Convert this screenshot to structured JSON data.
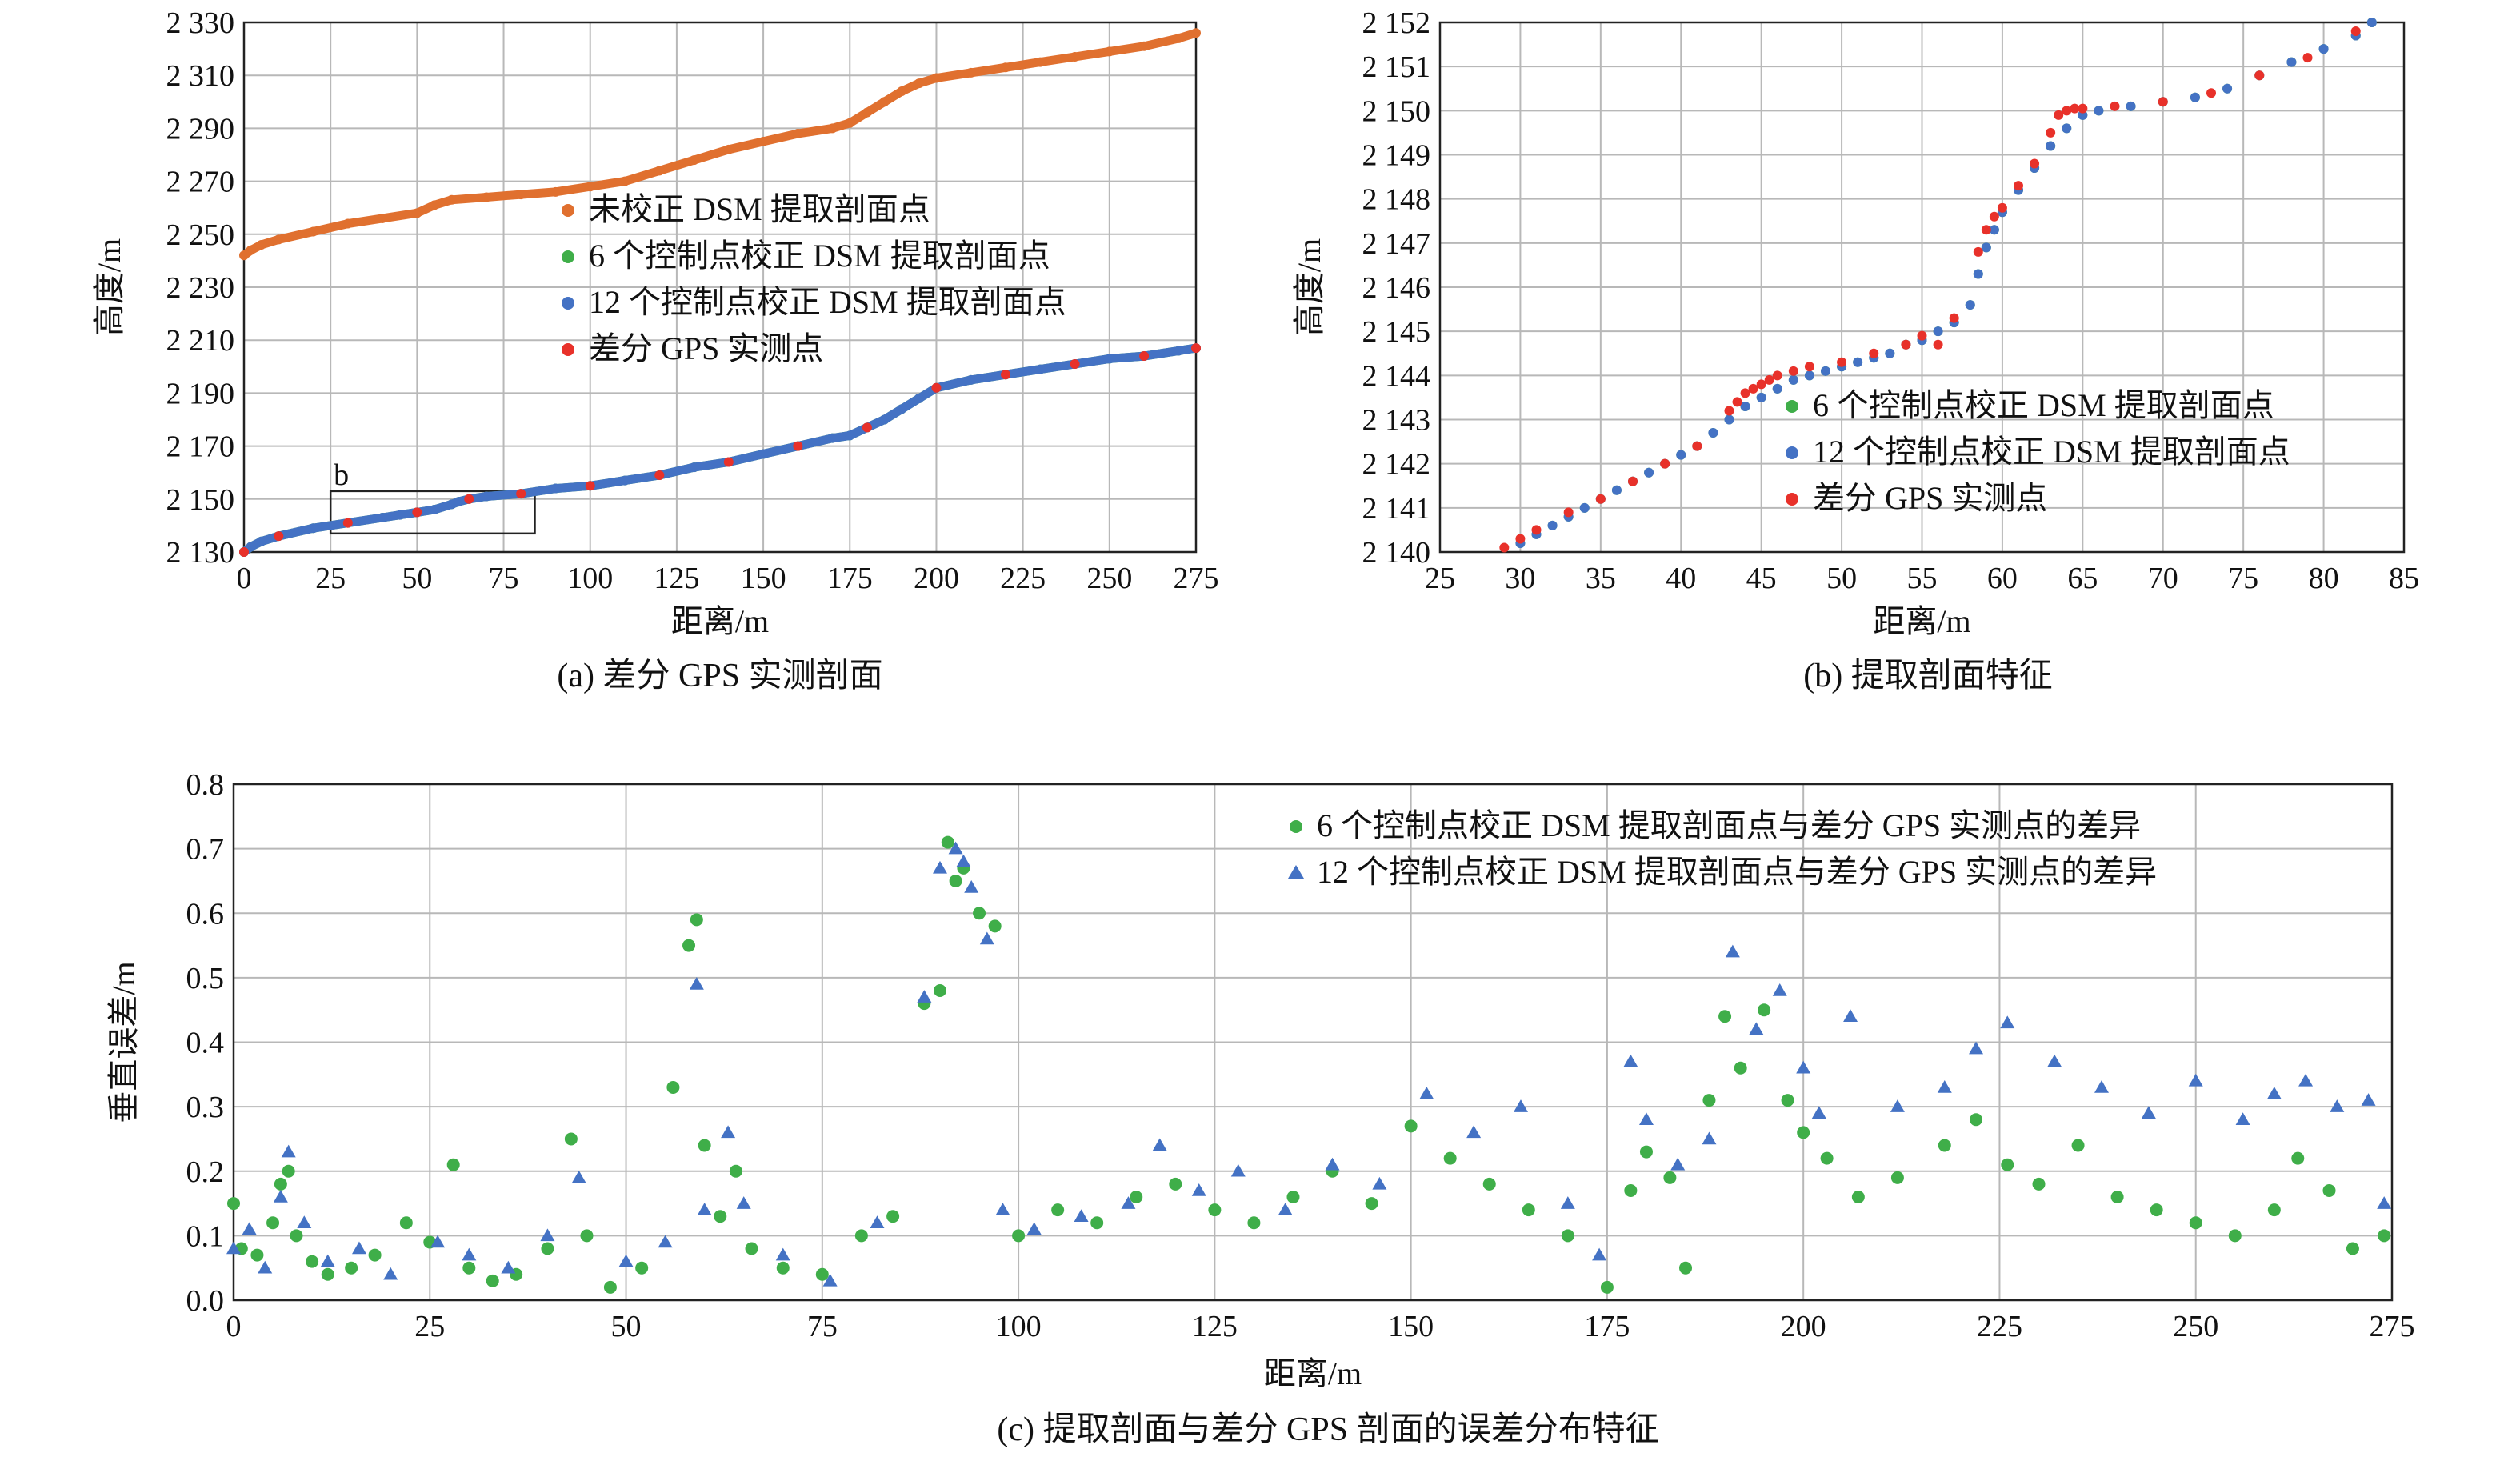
{
  "chart_data": [
    {
      "id": "a",
      "type": "scatter",
      "caption": "(a) 差分 GPS 实测剖面",
      "xlabel": "距离/m",
      "ylabel": "高度/m",
      "xlim": [
        0,
        275
      ],
      "ylim": [
        2130,
        2330
      ],
      "xticks": [
        0,
        25,
        50,
        75,
        100,
        125,
        150,
        175,
        200,
        225,
        250,
        275
      ],
      "yticks": [
        2130,
        2150,
        2170,
        2190,
        2210,
        2230,
        2250,
        2270,
        2290,
        2310,
        2330
      ],
      "ytick_labels": [
        "2 130",
        "2 150",
        "2 170",
        "2 190",
        "2 210",
        "2 230",
        "2 250",
        "2 270",
        "2 290",
        "2 310",
        "2 330"
      ],
      "grid": true,
      "legend_position": "center-right",
      "annotation": {
        "label": "b",
        "x_range": [
          25,
          84
        ],
        "y_range": [
          2137,
          2153
        ]
      },
      "series": [
        {
          "name": "未校正 DSM 提取剖面点",
          "color": "#E0702F",
          "x": [
            0,
            2,
            5,
            10,
            20,
            30,
            40,
            50,
            55,
            60,
            70,
            80,
            90,
            100,
            110,
            120,
            130,
            140,
            150,
            160,
            170,
            175,
            180,
            185,
            190,
            195,
            200,
            210,
            220,
            230,
            240,
            250,
            260,
            270,
            275
          ],
          "y": [
            2242,
            2244,
            2246,
            2248,
            2251,
            2254,
            2256,
            2258,
            2261,
            2263,
            2264,
            2265,
            2266,
            2268,
            2270,
            2274,
            2278,
            2282,
            2285,
            2288,
            2290,
            2292,
            2296,
            2300,
            2304,
            2307,
            2309,
            2311,
            2313,
            2315,
            2317,
            2319,
            2321,
            2324,
            2326
          ]
        },
        {
          "name": "6 个控制点校正 DSM 提取剖面点",
          "color": "#3FAE49",
          "x": [
            0,
            2,
            5,
            10,
            20,
            30,
            40,
            45,
            50,
            55,
            60,
            62,
            65,
            70,
            80,
            90,
            100,
            110,
            120,
            130,
            140,
            150,
            160,
            170,
            175,
            180,
            185,
            190,
            195,
            200,
            210,
            220,
            230,
            240,
            250,
            260,
            270,
            275
          ],
          "y": [
            2130,
            2132,
            2134,
            2136,
            2139,
            2141,
            2143,
            2144,
            2145,
            2146,
            2148,
            2149,
            2150,
            2151,
            2152,
            2154,
            2155,
            2157,
            2159,
            2162,
            2164,
            2167,
            2170,
            2173,
            2174,
            2177,
            2180,
            2184,
            2188,
            2192,
            2195,
            2197,
            2199,
            2201,
            2203,
            2204,
            2206,
            2207
          ]
        },
        {
          "name": "12 个控制点校正 DSM 提取剖面点",
          "color": "#4472C4",
          "x": [
            0,
            2,
            5,
            10,
            20,
            30,
            40,
            45,
            50,
            55,
            60,
            62,
            65,
            70,
            80,
            90,
            100,
            110,
            120,
            130,
            140,
            150,
            160,
            170,
            175,
            180,
            185,
            190,
            195,
            200,
            210,
            220,
            230,
            240,
            250,
            260,
            270,
            275
          ],
          "y": [
            2130,
            2132,
            2134,
            2136,
            2139,
            2141,
            2143,
            2144,
            2145,
            2146,
            2148,
            2149,
            2150,
            2151,
            2152,
            2154,
            2155,
            2157,
            2159,
            2162,
            2164,
            2167,
            2170,
            2173,
            2174,
            2177,
            2180,
            2184,
            2188,
            2192,
            2195,
            2197,
            2199,
            2201,
            2203,
            2204,
            2206,
            2207
          ]
        },
        {
          "name": "差分 GPS 实测点",
          "color": "#E8312A",
          "x": [
            0,
            10,
            30,
            50,
            65,
            80,
            100,
            120,
            140,
            160,
            180,
            200,
            220,
            240,
            260,
            275
          ],
          "y": [
            2130,
            2136,
            2141,
            2145,
            2150,
            2152,
            2155,
            2159,
            2164,
            2170,
            2177,
            2192,
            2197,
            2201,
            2204,
            2207
          ]
        }
      ]
    },
    {
      "id": "b",
      "type": "scatter",
      "caption": "(b) 提取剖面特征",
      "xlabel": "距离/m",
      "ylabel": "高度/m",
      "xlim": [
        25,
        85
      ],
      "ylim": [
        2140,
        2152
      ],
      "xticks": [
        25,
        30,
        35,
        40,
        45,
        50,
        55,
        60,
        65,
        70,
        75,
        80,
        85
      ],
      "yticks": [
        2140,
        2141,
        2142,
        2143,
        2144,
        2145,
        2146,
        2147,
        2148,
        2149,
        2150,
        2151,
        2152
      ],
      "ytick_labels": [
        "2 140",
        "2 141",
        "2 142",
        "2 143",
        "2 144",
        "2 145",
        "2 146",
        "2 147",
        "2 148",
        "2 149",
        "2 150",
        "2 151",
        "2 152"
      ],
      "grid": true,
      "legend_position": "lower-right",
      "series": [
        {
          "name": "6 个控制点校正 DSM 提取剖面点",
          "color": "#3FAE49",
          "x": [
            30,
            31,
            32,
            33,
            34,
            35,
            36,
            37,
            38,
            39,
            40,
            41,
            42,
            43,
            44,
            45,
            46,
            47,
            48,
            49,
            50,
            51,
            52,
            53,
            54,
            55,
            56,
            57,
            58,
            58.5,
            59,
            59.5,
            60,
            61,
            62,
            63,
            64,
            65,
            66,
            68,
            70,
            72,
            74,
            76,
            78,
            80,
            82,
            83
          ],
          "y": [
            2140.2,
            2140.4,
            2140.6,
            2140.8,
            2141.0,
            2141.2,
            2141.4,
            2141.6,
            2141.8,
            2142.0,
            2142.2,
            2142.4,
            2142.7,
            2143.0,
            2143.3,
            2143.5,
            2143.7,
            2143.9,
            2144.0,
            2144.1,
            2144.2,
            2144.3,
            2144.4,
            2144.5,
            2144.7,
            2144.8,
            2145.0,
            2145.2,
            2145.6,
            2146.3,
            2146.9,
            2147.3,
            2147.7,
            2148.2,
            2148.7,
            2149.2,
            2149.6,
            2149.9,
            2150.0,
            2150.1,
            2150.2,
            2150.3,
            2150.5,
            2150.8,
            2151.1,
            2151.4,
            2151.7,
            2152.0
          ]
        },
        {
          "name": "12 个控制点校正 DSM 提取剖面点",
          "color": "#4472C4",
          "x": [
            30,
            31,
            32,
            33,
            34,
            35,
            36,
            37,
            38,
            39,
            40,
            41,
            42,
            43,
            44,
            45,
            46,
            47,
            48,
            49,
            50,
            51,
            52,
            53,
            54,
            55,
            56,
            57,
            58,
            58.5,
            59,
            59.5,
            60,
            61,
            62,
            63,
            64,
            65,
            66,
            68,
            70,
            72,
            74,
            76,
            78,
            80,
            82,
            83
          ],
          "y": [
            2140.2,
            2140.4,
            2140.6,
            2140.8,
            2141.0,
            2141.2,
            2141.4,
            2141.6,
            2141.8,
            2142.0,
            2142.2,
            2142.4,
            2142.7,
            2143.0,
            2143.3,
            2143.5,
            2143.7,
            2143.9,
            2144.0,
            2144.1,
            2144.2,
            2144.3,
            2144.4,
            2144.5,
            2144.7,
            2144.8,
            2145.0,
            2145.2,
            2145.6,
            2146.3,
            2146.9,
            2147.3,
            2147.7,
            2148.2,
            2148.7,
            2149.2,
            2149.6,
            2149.9,
            2150.0,
            2150.1,
            2150.2,
            2150.3,
            2150.5,
            2150.8,
            2151.1,
            2151.4,
            2151.7,
            2152.0
          ]
        },
        {
          "name": "差分 GPS 实测点",
          "color": "#E8312A",
          "x": [
            29,
            30,
            31,
            33,
            35,
            37,
            39,
            41,
            43,
            43.5,
            44,
            44.5,
            45,
            45.5,
            46,
            47,
            48,
            50,
            52,
            54,
            55,
            56,
            57,
            58.5,
            59,
            59.5,
            60,
            61,
            62,
            63,
            63.5,
            64,
            64.5,
            65,
            67,
            70,
            73,
            76,
            79,
            82
          ],
          "y": [
            2140.1,
            2140.3,
            2140.5,
            2140.9,
            2141.2,
            2141.6,
            2142.0,
            2142.4,
            2143.2,
            2143.4,
            2143.6,
            2143.7,
            2143.8,
            2143.9,
            2144.0,
            2144.1,
            2144.2,
            2144.3,
            2144.5,
            2144.7,
            2144.9,
            2144.7,
            2145.3,
            2146.8,
            2147.3,
            2147.6,
            2147.8,
            2148.3,
            2148.8,
            2149.5,
            2149.9,
            2150.0,
            2150.05,
            2150.05,
            2150.1,
            2150.2,
            2150.4,
            2150.8,
            2151.2,
            2151.8
          ]
        }
      ]
    },
    {
      "id": "c",
      "type": "scatter",
      "caption": "(c) 提取剖面与差分 GPS 剖面的误差分布特征",
      "xlabel": "距离/m",
      "ylabel": "垂直误差/m",
      "xlim": [
        0,
        275
      ],
      "ylim": [
        0,
        0.8
      ],
      "xticks": [
        0,
        25,
        50,
        75,
        100,
        125,
        150,
        175,
        200,
        225,
        250,
        275
      ],
      "yticks": [
        0,
        0.1,
        0.2,
        0.3,
        0.4,
        0.5,
        0.6,
        0.7,
        0.8
      ],
      "ytick_labels": [
        "0.0",
        "0.1",
        "0.2",
        "0.3",
        "0.4",
        "0.5",
        "0.6",
        "0.7",
        "0.8"
      ],
      "grid": true,
      "legend_position": "top-right",
      "series": [
        {
          "name": "6 个控制点校正 DSM 提取剖面点与差分 GPS 实测点的差异",
          "color": "#3FAE49",
          "marker": "circle",
          "x": [
            0,
            1,
            3,
            5,
            6,
            7,
            8,
            10,
            12,
            15,
            18,
            22,
            25,
            28,
            30,
            33,
            36,
            40,
            43,
            45,
            48,
            52,
            56,
            58,
            59,
            60,
            62,
            64,
            66,
            70,
            75,
            80,
            84,
            88,
            90,
            91,
            92,
            93,
            95,
            97,
            100,
            105,
            110,
            115,
            120,
            125,
            130,
            135,
            140,
            145,
            150,
            155,
            160,
            165,
            170,
            175,
            178,
            180,
            183,
            185,
            188,
            190,
            192,
            195,
            198,
            200,
            203,
            207,
            212,
            218,
            222,
            226,
            230,
            235,
            240,
            245,
            250,
            255,
            260,
            263,
            267,
            270,
            274
          ],
          "y": [
            0.15,
            0.08,
            0.07,
            0.12,
            0.18,
            0.2,
            0.1,
            0.06,
            0.04,
            0.05,
            0.07,
            0.12,
            0.09,
            0.21,
            0.05,
            0.03,
            0.04,
            0.08,
            0.25,
            0.1,
            0.02,
            0.05,
            0.33,
            0.55,
            0.59,
            0.24,
            0.13,
            0.2,
            0.08,
            0.05,
            0.04,
            0.1,
            0.13,
            0.46,
            0.48,
            0.71,
            0.65,
            0.67,
            0.6,
            0.58,
            0.1,
            0.14,
            0.12,
            0.16,
            0.18,
            0.14,
            0.12,
            0.16,
            0.2,
            0.15,
            0.27,
            0.22,
            0.18,
            0.14,
            0.1,
            0.02,
            0.17,
            0.23,
            0.19,
            0.05,
            0.31,
            0.44,
            0.36,
            0.45,
            0.31,
            0.26,
            0.22,
            0.16,
            0.19,
            0.24,
            0.28,
            0.21,
            0.18,
            0.24,
            0.16,
            0.14,
            0.12,
            0.1,
            0.14,
            0.22,
            0.17,
            0.08,
            0.1
          ]
        },
        {
          "name": "12 个控制点校正 DSM 提取剖面点与差分 GPS 实测点的差异",
          "color": "#4472C4",
          "marker": "triangle",
          "x": [
            0,
            2,
            4,
            6,
            7,
            9,
            12,
            16,
            20,
            26,
            30,
            35,
            40,
            44,
            50,
            55,
            59,
            60,
            63,
            65,
            70,
            76,
            82,
            88,
            90,
            92,
            93,
            94,
            96,
            98,
            102,
            108,
            114,
            118,
            123,
            128,
            134,
            140,
            146,
            152,
            158,
            164,
            170,
            174,
            178,
            180,
            184,
            188,
            191,
            194,
            197,
            200,
            202,
            206,
            212,
            218,
            222,
            226,
            232,
            238,
            244,
            250,
            256,
            260,
            264,
            268,
            272,
            274
          ],
          "y": [
            0.08,
            0.11,
            0.05,
            0.16,
            0.23,
            0.12,
            0.06,
            0.08,
            0.04,
            0.09,
            0.07,
            0.05,
            0.1,
            0.19,
            0.06,
            0.09,
            0.49,
            0.14,
            0.26,
            0.15,
            0.07,
            0.03,
            0.12,
            0.47,
            0.67,
            0.7,
            0.68,
            0.64,
            0.56,
            0.14,
            0.11,
            0.13,
            0.15,
            0.24,
            0.17,
            0.2,
            0.14,
            0.21,
            0.18,
            0.32,
            0.26,
            0.3,
            0.15,
            0.07,
            0.37,
            0.28,
            0.21,
            0.25,
            0.54,
            0.42,
            0.48,
            0.36,
            0.29,
            0.44,
            0.3,
            0.33,
            0.39,
            0.43,
            0.37,
            0.33,
            0.29,
            0.34,
            0.28,
            0.32,
            0.34,
            0.3,
            0.31,
            0.15
          ]
        }
      ]
    }
  ]
}
